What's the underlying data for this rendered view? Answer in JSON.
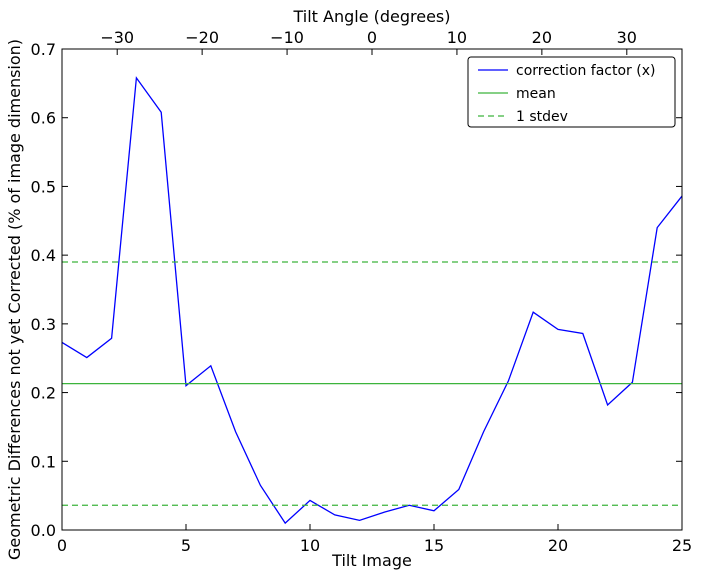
{
  "chart_data": {
    "type": "line",
    "xlabel": "Tilt Image",
    "ylabel": "Geometric Differences not yet Corrected (% of image dimension)",
    "top_xlabel": "Tilt Angle (degrees)",
    "xlim": [
      0,
      25
    ],
    "ylim": [
      0,
      0.7
    ],
    "x_ticks": [
      0,
      5,
      10,
      15,
      20,
      25
    ],
    "y_ticks": [
      0.0,
      0.1,
      0.2,
      0.3,
      0.4,
      0.5,
      0.6,
      0.7
    ],
    "y_tick_labels": [
      "0.0",
      "0.1",
      "0.2",
      "0.3",
      "0.4",
      "0.5",
      "0.6",
      "0.7"
    ],
    "top_ticks": [
      -30,
      -20,
      -10,
      0,
      10,
      20,
      30
    ],
    "top_tick_labels": [
      "−30",
      "−20",
      "−10",
      "0",
      "10",
      "20",
      "30"
    ],
    "top_axis_range": [
      -36.5,
      36.5
    ],
    "grid": false,
    "legend_position": "top-right",
    "series": [
      {
        "name": "correction factor (x)",
        "color": "#0000ff",
        "style": "solid",
        "x": [
          0,
          1,
          2,
          3,
          4,
          5,
          6,
          7,
          8,
          9,
          10,
          11,
          12,
          13,
          14,
          15,
          16,
          17,
          18,
          19,
          20,
          21,
          22,
          23,
          24,
          25
        ],
        "y": [
          0.273,
          0.251,
          0.279,
          0.658,
          0.608,
          0.21,
          0.239,
          0.143,
          0.065,
          0.01,
          0.043,
          0.022,
          0.014,
          0.026,
          0.036,
          0.028,
          0.059,
          0.143,
          0.217,
          0.317,
          0.292,
          0.286,
          0.182,
          0.215,
          0.44,
          0.486
        ]
      },
      {
        "name": "mean",
        "color": "#3cb43c",
        "style": "solid",
        "hline": 0.213
      },
      {
        "name": "1 stdev",
        "color": "#3cb43c",
        "style": "dashed",
        "hlines": [
          0.39,
          0.036
        ]
      }
    ]
  }
}
